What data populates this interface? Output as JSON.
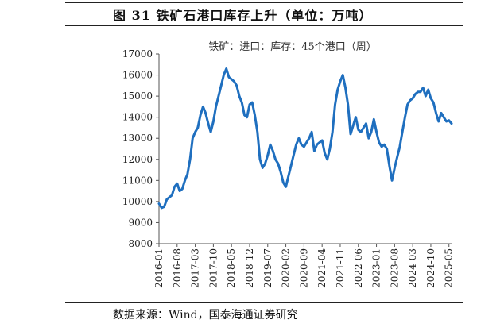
{
  "figure": {
    "title": "图 31 铁矿石港口库存上升（单位：万吨）",
    "source": "数据来源：Wind，国泰海通证券研究"
  },
  "chart_data": {
    "type": "line",
    "title": "",
    "legend_position": "top-center",
    "xlabel": "",
    "ylabel": "",
    "ylim": [
      8000,
      17000
    ],
    "yticks": [
      8000,
      9000,
      10000,
      11000,
      12000,
      13000,
      14000,
      15000,
      16000,
      17000
    ],
    "xlim": [
      "2016-01",
      "2025-06"
    ],
    "xticks": [
      "2016-01",
      "2016-08",
      "2017-03",
      "2017-10",
      "2018-05",
      "2018-12",
      "2019-07",
      "2020-02",
      "2020-09",
      "2021-04",
      "2021-11",
      "2022-06",
      "2023-01",
      "2023-08",
      "2024-03",
      "2024-10",
      "2025-05"
    ],
    "color": "#1f6fbf",
    "series": [
      {
        "name": "铁矿：进口：库存：45个港口（周）",
        "x": [
          "2016-01",
          "2016-02",
          "2016-03",
          "2016-04",
          "2016-05",
          "2016-06",
          "2016-07",
          "2016-08",
          "2016-09",
          "2016-10",
          "2016-11",
          "2016-12",
          "2017-01",
          "2017-02",
          "2017-03",
          "2017-04",
          "2017-05",
          "2017-06",
          "2017-07",
          "2017-08",
          "2017-09",
          "2017-10",
          "2017-11",
          "2017-12",
          "2018-01",
          "2018-02",
          "2018-03",
          "2018-04",
          "2018-05",
          "2018-06",
          "2018-07",
          "2018-08",
          "2018-09",
          "2018-10",
          "2018-11",
          "2018-12",
          "2019-01",
          "2019-02",
          "2019-03",
          "2019-04",
          "2019-05",
          "2019-06",
          "2019-07",
          "2019-08",
          "2019-09",
          "2019-10",
          "2019-11",
          "2019-12",
          "2020-01",
          "2020-02",
          "2020-03",
          "2020-04",
          "2020-05",
          "2020-06",
          "2020-07",
          "2020-08",
          "2020-09",
          "2020-10",
          "2020-11",
          "2020-12",
          "2021-01",
          "2021-02",
          "2021-03",
          "2021-04",
          "2021-05",
          "2021-06",
          "2021-07",
          "2021-08",
          "2021-09",
          "2021-10",
          "2021-11",
          "2021-12",
          "2022-01",
          "2022-02",
          "2022-03",
          "2022-04",
          "2022-05",
          "2022-06",
          "2022-07",
          "2022-08",
          "2022-09",
          "2022-10",
          "2022-11",
          "2022-12",
          "2023-01",
          "2023-02",
          "2023-03",
          "2023-04",
          "2023-05",
          "2023-06",
          "2023-07",
          "2023-08",
          "2023-09",
          "2023-10",
          "2023-11",
          "2023-12",
          "2024-01",
          "2024-02",
          "2024-03",
          "2024-04",
          "2024-05",
          "2024-06",
          "2024-07",
          "2024-08",
          "2024-09",
          "2024-10",
          "2024-11",
          "2024-12",
          "2025-01",
          "2025-02",
          "2025-03",
          "2025-04",
          "2025-05",
          "2025-06"
        ],
        "values": [
          9900,
          9700,
          9750,
          10100,
          10200,
          10300,
          10700,
          10850,
          10500,
          10600,
          11000,
          11300,
          12000,
          13000,
          13300,
          13500,
          14100,
          14500,
          14200,
          13700,
          13300,
          13800,
          14500,
          15000,
          15500,
          16000,
          16300,
          15900,
          15800,
          15700,
          15500,
          15000,
          14700,
          14100,
          14000,
          14600,
          14700,
          14100,
          13300,
          12000,
          11600,
          11800,
          12200,
          12700,
          12400,
          12000,
          11800,
          11400,
          10900,
          10700,
          11200,
          11700,
          12200,
          12700,
          13000,
          12700,
          12600,
          12800,
          13000,
          13300,
          12400,
          12700,
          12800,
          12900,
          12300,
          12000,
          12500,
          13300,
          14600,
          15300,
          15700,
          16000,
          15400,
          14600,
          13200,
          13600,
          14000,
          13400,
          13300,
          13500,
          13700,
          13000,
          13300,
          13900,
          13300,
          12800,
          12600,
          12700,
          12500,
          11700,
          11000,
          11600,
          12100,
          12600,
          13300,
          14000,
          14600,
          14800,
          14900,
          15100,
          15200,
          15200,
          15400,
          15000,
          15300,
          14900,
          14700,
          14200,
          13800,
          14200,
          14000,
          13800,
          13850,
          13700
        ]
      }
    ]
  }
}
